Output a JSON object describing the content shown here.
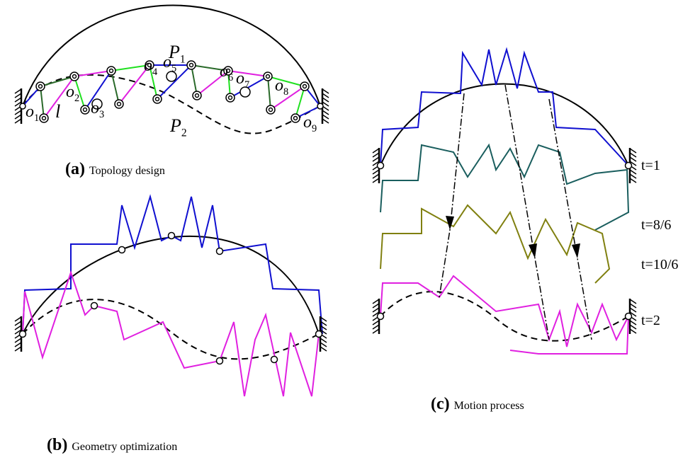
{
  "panel_a": {
    "curve_labels": [
      {
        "base": "P",
        "sub": "1"
      },
      {
        "base": "P",
        "sub": "2"
      }
    ],
    "joint_labels": [
      {
        "base": "o",
        "sub": "1"
      },
      {
        "base": "o",
        "sub": "2"
      },
      {
        "base": "o",
        "sub": "3"
      },
      {
        "base": "o",
        "sub": "4"
      },
      {
        "base": "o",
        "sub": "5"
      },
      {
        "base": "o",
        "sub": "6"
      },
      {
        "base": "o",
        "sub": "7"
      },
      {
        "base": "o",
        "sub": "8"
      },
      {
        "base": "o",
        "sub": "9"
      }
    ],
    "link_label": "l",
    "caption": {
      "tag": "(a)",
      "text": "Topology design"
    }
  },
  "panel_b": {
    "caption": {
      "tag": "(b)",
      "text": "Geometry optimization"
    }
  },
  "panel_c": {
    "time_labels": [
      "t=1",
      "t=8/6",
      "t=10/6",
      "t=2"
    ],
    "caption": {
      "tag": "(c)",
      "text": "Motion process"
    }
  }
}
